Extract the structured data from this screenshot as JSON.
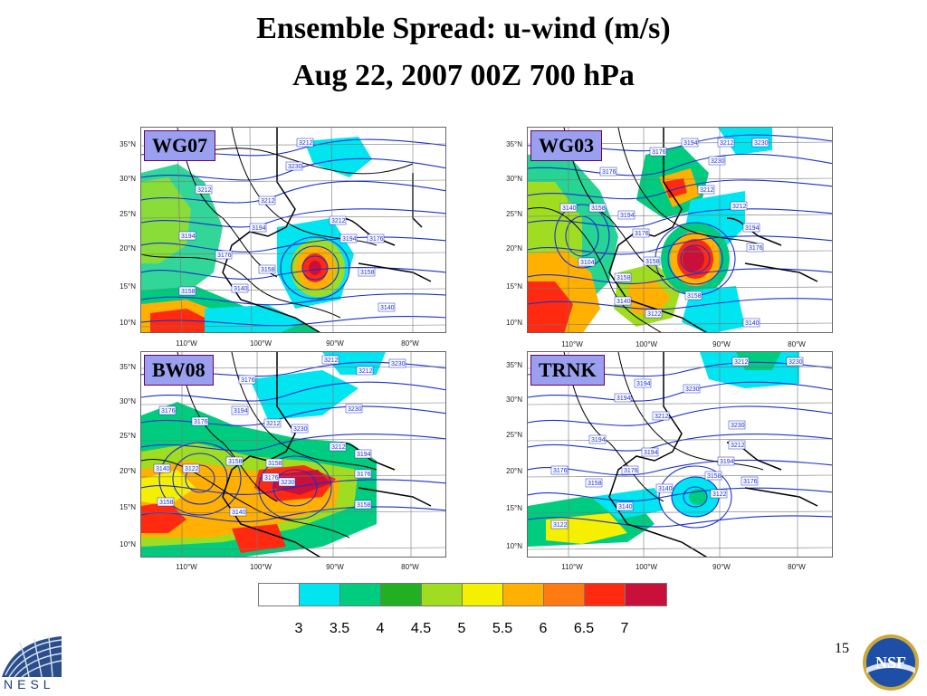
{
  "title_line1": "Ensemble Spread: u-wind (m/s)",
  "title_line2": "Aug 22, 2007 00Z 700 hPa",
  "panels": [
    {
      "label": "WG07"
    },
    {
      "label": "WG03"
    },
    {
      "label": "BW08"
    },
    {
      "label": "TRNK"
    }
  ],
  "lat_labels": [
    "35°N",
    "30°N",
    "25°N",
    "20°N",
    "15°N",
    "10°N"
  ],
  "lon_labels": [
    "110°W",
    "100°W",
    "90°W",
    "80°W"
  ],
  "colorbar": {
    "colors": [
      "#ffffff",
      "#00e5f0",
      "#00cc80",
      "#22b022",
      "#a0dd20",
      "#f5f000",
      "#ffb000",
      "#ff7a10",
      "#ff2a10",
      "#c8103a"
    ],
    "ticks": [
      "3",
      "3.5",
      "4",
      "4.5",
      "5",
      "5.5",
      "6",
      "6.5",
      "7"
    ]
  },
  "page_number": "15",
  "logo_text": "NESL",
  "nsf_text": "NSF"
}
